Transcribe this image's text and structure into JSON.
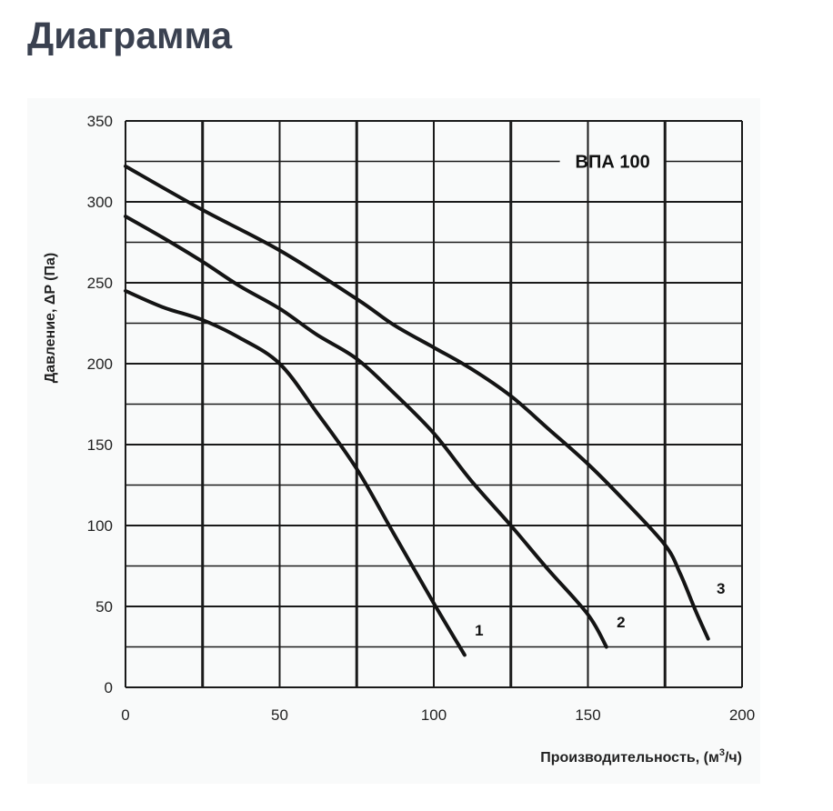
{
  "page": {
    "title": "Диаграмма"
  },
  "chart_data": {
    "type": "line",
    "model_label": "ВПА 100",
    "xlabel": "Производительность, (м³/ч)",
    "ylabel": "Давление, ΔP (Па)",
    "xlim": [
      0,
      200
    ],
    "ylim": [
      0,
      350
    ],
    "xticks": [
      0,
      50,
      100,
      150,
      200
    ],
    "yticks": [
      0,
      50,
      100,
      150,
      200,
      250,
      300,
      350
    ],
    "grid": true,
    "series": [
      {
        "name": "1",
        "x": [
          0,
          12,
          25,
          37,
          50,
          62,
          75,
          87,
          100,
          110
        ],
        "y": [
          245,
          235,
          227,
          216,
          200,
          170,
          135,
          95,
          52,
          20
        ]
      },
      {
        "name": "2",
        "x": [
          0,
          12,
          25,
          37,
          50,
          62,
          75,
          87,
          100,
          112,
          125,
          137,
          150,
          156
        ],
        "y": [
          291,
          278,
          263,
          248,
          234,
          218,
          203,
          182,
          157,
          128,
          100,
          73,
          45,
          25
        ]
      },
      {
        "name": "3",
        "x": [
          0,
          25,
          50,
          75,
          87,
          100,
          112,
          125,
          137,
          150,
          162,
          175,
          180,
          185,
          189
        ],
        "y": [
          322,
          295,
          270,
          240,
          224,
          210,
          197,
          180,
          160,
          138,
          115,
          88,
          70,
          47,
          30
        ]
      }
    ],
    "colors": {
      "line": "#141414",
      "grid": "#1a1a1a",
      "title": "#3a4150",
      "panel": "#f9fafa"
    }
  }
}
